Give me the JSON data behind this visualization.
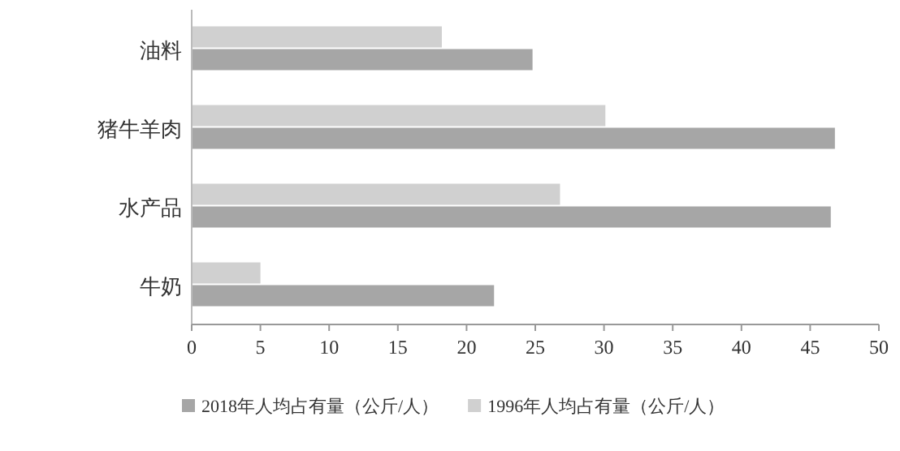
{
  "chart_data": {
    "type": "bar",
    "orientation": "horizontal",
    "categories": [
      "油料",
      "猪牛羊肉",
      "水产品",
      "牛奶"
    ],
    "series": [
      {
        "name": "2018年人均占有量（公斤/人）",
        "color": "#a6a6a6",
        "values": [
          24.8,
          46.8,
          46.5,
          22.0
        ]
      },
      {
        "name": "1996年人均占有量（公斤/人）",
        "color": "#d0d0d0",
        "values": [
          18.2,
          30.1,
          26.8,
          5.0
        ]
      }
    ],
    "xlim": [
      0,
      50
    ],
    "xticks": [
      0,
      5,
      10,
      15,
      20,
      25,
      30,
      35,
      40,
      45,
      50
    ],
    "grid": false,
    "legend": "bottom"
  }
}
